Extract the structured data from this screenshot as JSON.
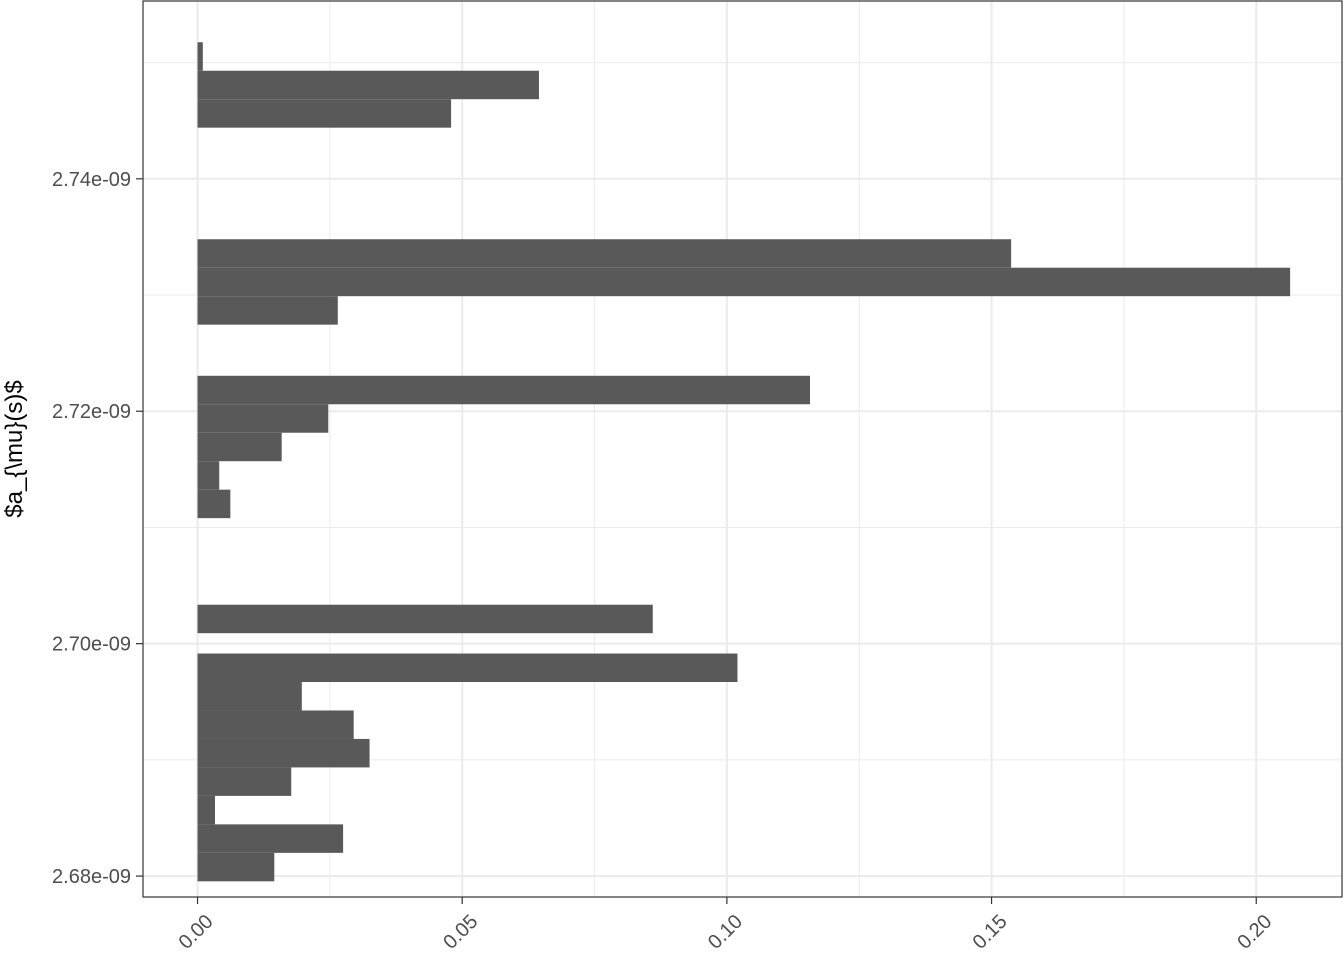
{
  "chart_data": {
    "type": "bar",
    "orientation": "horizontal",
    "xlabel": "",
    "ylabel": "$a_{\\mu}(s)$",
    "xlim": [
      -0.0103,
      0.2162
    ],
    "ylim": [
      2.6782e-09,
      2.7553e-09
    ],
    "x_ticks": [
      0.0,
      0.05,
      0.1,
      0.15,
      0.2
    ],
    "x_tick_labels": [
      "0.00",
      "0.05",
      "0.10",
      "0.15",
      "0.20"
    ],
    "y_ticks": [
      2.68e-09,
      2.7e-09,
      2.72e-09,
      2.74e-09
    ],
    "y_tick_labels": [
      "2.68e-09",
      "2.70e-09",
      "2.72e-09",
      "2.74e-09"
    ],
    "grid": true,
    "bar_color": "#595959",
    "bins": [
      {
        "ymin": 2.67955e-09,
        "ymax": 2.682e-09,
        "value": 0.0145
      },
      {
        "ymin": 2.682e-09,
        "ymax": 2.68445e-09,
        "value": 0.0275
      },
      {
        "ymin": 2.68445e-09,
        "ymax": 2.6869e-09,
        "value": 0.0033
      },
      {
        "ymin": 2.6869e-09,
        "ymax": 2.68935e-09,
        "value": 0.0177
      },
      {
        "ymin": 2.68935e-09,
        "ymax": 2.6918e-09,
        "value": 0.0325
      },
      {
        "ymin": 2.6918e-09,
        "ymax": 2.69425e-09,
        "value": 0.0295
      },
      {
        "ymin": 2.69425e-09,
        "ymax": 2.6967e-09,
        "value": 0.0197
      },
      {
        "ymin": 2.6967e-09,
        "ymax": 2.69915e-09,
        "value": 0.102
      },
      {
        "ymin": 2.7009e-09,
        "ymax": 2.70335e-09,
        "value": 0.086
      },
      {
        "ymin": 2.7108e-09,
        "ymax": 2.71325e-09,
        "value": 0.0062
      },
      {
        "ymin": 2.71325e-09,
        "ymax": 2.7157e-09,
        "value": 0.0041
      },
      {
        "ymin": 2.7157e-09,
        "ymax": 2.71815e-09,
        "value": 0.0159
      },
      {
        "ymin": 2.71815e-09,
        "ymax": 2.7206e-09,
        "value": 0.0247
      },
      {
        "ymin": 2.7206e-09,
        "ymax": 2.72305e-09,
        "value": 0.1157
      },
      {
        "ymin": 2.72745e-09,
        "ymax": 2.7299e-09,
        "value": 0.0265
      },
      {
        "ymin": 2.7299e-09,
        "ymax": 2.73235e-09,
        "value": 0.2064
      },
      {
        "ymin": 2.73235e-09,
        "ymax": 2.7348e-09,
        "value": 0.1537
      },
      {
        "ymin": 2.7444e-09,
        "ymax": 2.74685e-09,
        "value": 0.0479
      },
      {
        "ymin": 2.74685e-09,
        "ymax": 2.7493e-09,
        "value": 0.0645
      },
      {
        "ymin": 2.7493e-09,
        "ymax": 2.75175e-09,
        "value": 0.001
      }
    ]
  }
}
